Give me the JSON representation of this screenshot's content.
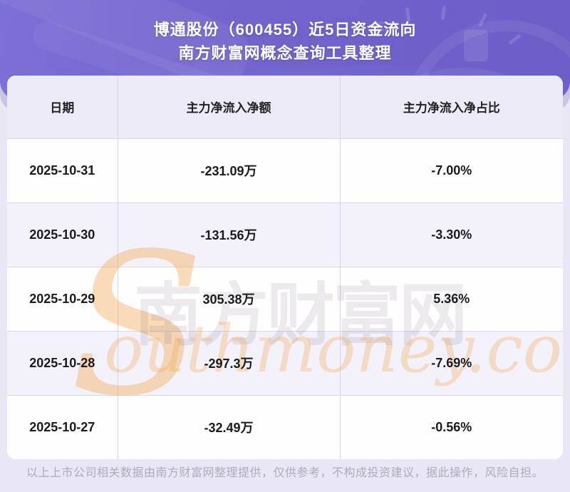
{
  "header": {
    "title_line1": "博通股份（600455）近5日资金流向",
    "title_line2": "南方财富网概念查询工具整理"
  },
  "table": {
    "columns": [
      "日期",
      "主力净流入净额",
      "主力净流入净占比"
    ],
    "rows": [
      {
        "date": "2025-10-31",
        "amount": "-231.09万",
        "ratio": "-7.00%"
      },
      {
        "date": "2025-10-30",
        "amount": "-131.56万",
        "ratio": "-3.30%"
      },
      {
        "date": "2025-10-29",
        "amount": "305.38万",
        "ratio": "5.36%"
      },
      {
        "date": "2025-10-28",
        "amount": "-297.3万",
        "ratio": "-7.69%"
      },
      {
        "date": "2025-10-27",
        "amount": "-32.49万",
        "ratio": "-0.56%"
      }
    ]
  },
  "watermark": {
    "s": "S",
    "cn": "南方财富网",
    "en": "outhmoney.com"
  },
  "footer": {
    "disclaimer": "以上上市公司相关数据由南方财富网整理提供，仅供参考，不构成投资建议，据此操作，风险自担。"
  },
  "colors": {
    "banner_purple": "#6f63cc",
    "stripe_lavender": "#f3f1fa",
    "header_cell": "#edebf7",
    "watermark_orange": "#f2a64d",
    "page_background": "#e9e6f5"
  }
}
